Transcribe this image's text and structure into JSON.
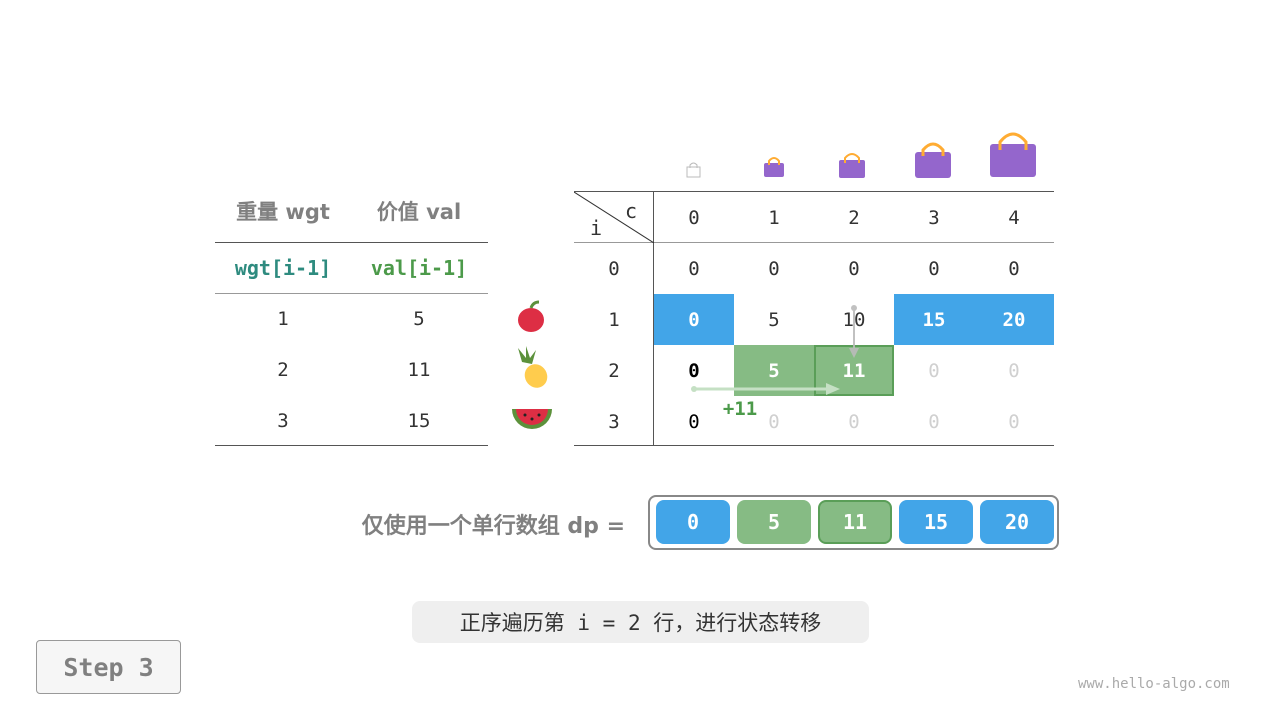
{
  "left_table": {
    "headers": [
      "重量 wgt",
      "价值 val"
    ],
    "subheaders": [
      "wgt[i-1]",
      "val[i-1]"
    ],
    "rows": [
      [
        "1",
        "5"
      ],
      [
        "2",
        "11"
      ],
      [
        "3",
        "15"
      ]
    ],
    "items": [
      "apple-icon",
      "pineapple-icon",
      "watermelon-icon"
    ]
  },
  "dp_table": {
    "corner_i": "i",
    "corner_c": "c",
    "cols": [
      "0",
      "1",
      "2",
      "3",
      "4"
    ],
    "row_labels": [
      "0",
      "1",
      "2",
      "3"
    ],
    "rows": [
      [
        "0",
        "0",
        "0",
        "0",
        "0"
      ],
      [
        "0",
        "5",
        "10",
        "15",
        "20"
      ],
      [
        "0",
        "5",
        "11",
        "0",
        "0"
      ],
      [
        "0",
        "0",
        "0",
        "0",
        "0"
      ]
    ],
    "annotation": "+11"
  },
  "dp_array": {
    "label": "仅使用一个单行数组 dp =",
    "values": [
      "0",
      "5",
      "11",
      "15",
      "20"
    ]
  },
  "caption": "正序遍历第 i = 2 行，进行状态转移",
  "step": "Step 3",
  "watermark": "www.hello-algo.com",
  "colors": {
    "blue": "#42a5e8",
    "green": "#86bb84",
    "green_border": "#5a9e58",
    "bag": "#9466cc"
  }
}
